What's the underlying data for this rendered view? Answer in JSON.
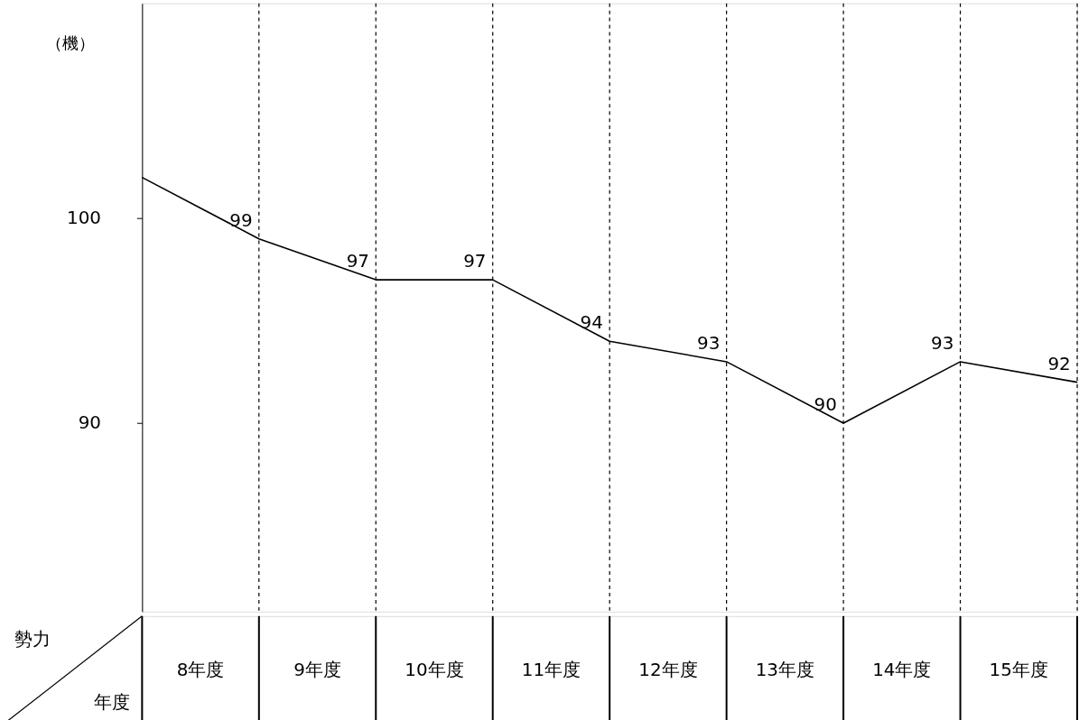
{
  "chart_data": {
    "type": "line",
    "ylabel": "（機）",
    "xlabel": "年度",
    "annotations": [
      "勢力"
    ],
    "x": [
      7.5,
      8.5,
      9.5,
      10.5,
      11.5,
      12.5,
      13.5,
      14.5,
      15.5
    ],
    "series": [
      {
        "color": "#000000",
        "values": [
          102,
          99,
          97,
          97,
          94,
          93,
          90,
          93,
          92
        ],
        "value_labels": [
          null,
          "99",
          "97",
          "97",
          "94",
          "93",
          "90",
          "93",
          "92"
        ]
      }
    ],
    "xlim": [
      7.5,
      15.5
    ],
    "xticks": [
      {
        "value": 8,
        "label": "8年度"
      },
      {
        "value": 9,
        "label": "9年度"
      },
      {
        "value": 10,
        "label": "10年度"
      },
      {
        "value": 11,
        "label": "11年度"
      },
      {
        "value": 12,
        "label": "12年度"
      },
      {
        "value": 13,
        "label": "13年度"
      },
      {
        "value": 14,
        "label": "14年度"
      },
      {
        "value": 15,
        "label": "15年度"
      },
      {
        "value": 8.5,
        "label": null
      },
      {
        "value": 9.5,
        "label": null
      },
      {
        "value": 10.5,
        "label": null
      },
      {
        "value": 11.5,
        "label": null
      },
      {
        "value": 12.5,
        "label": null
      },
      {
        "value": 13.5,
        "label": null
      },
      {
        "value": 14.5,
        "label": null
      },
      {
        "value": 15.5,
        "label": null
      }
    ],
    "legend": false,
    "ylim": [
      80.8,
      110.5
    ],
    "yticks": [
      90,
      100
    ],
    "grid": "x",
    "marker": "none",
    "line_style": "solid"
  }
}
